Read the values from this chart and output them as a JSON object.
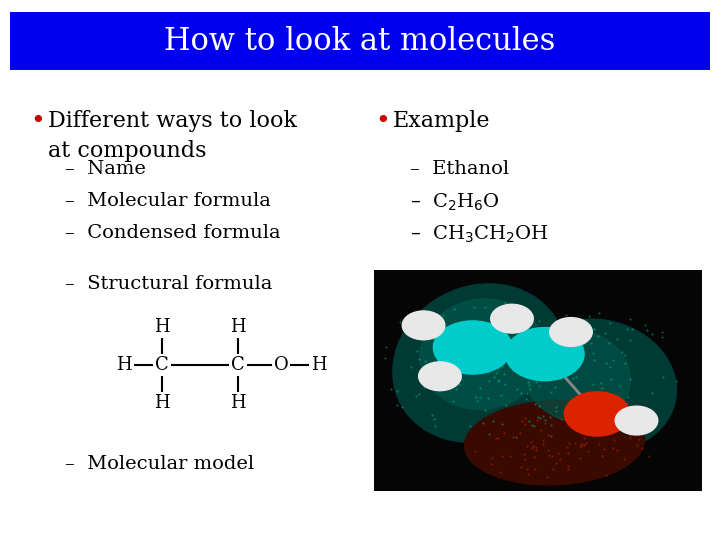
{
  "title": "How to look at molecules",
  "title_bg_color": "#0000EE",
  "title_text_color": "#FFFFFF",
  "bg_color": "#FFFFFF",
  "bullet_color": "#CC0000",
  "text_color": "#000000",
  "left_bullet": "Different ways to look\nat compounds",
  "left_subitems": [
    "Name",
    "Molecular formula",
    "Condensed formula"
  ],
  "left_extra": "Structural formula",
  "left_extra2": "Molecular model",
  "right_bullet": "Example",
  "right_subitems": [
    "Ethanol",
    "C$_2$H$_6$O",
    "CH$_3$CH$_2$OH"
  ],
  "font_size_title": 22,
  "font_size_bullet": 16,
  "font_size_sub": 14
}
